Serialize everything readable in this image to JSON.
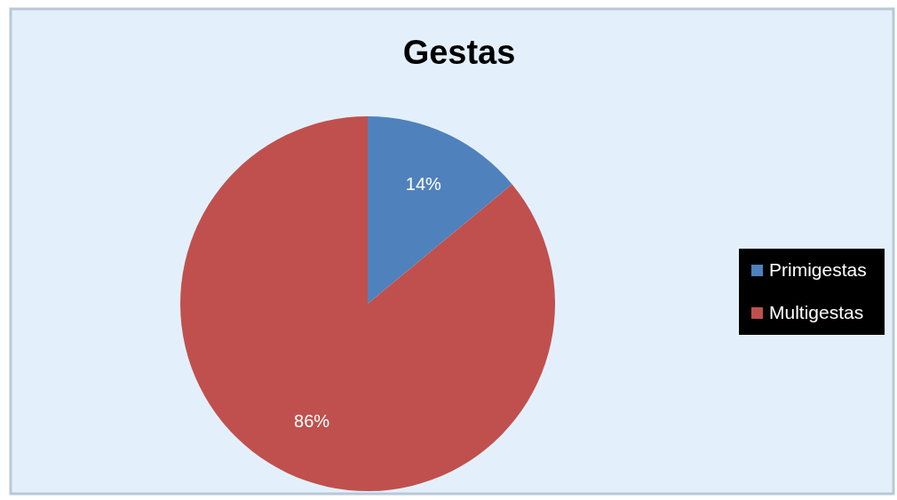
{
  "chart_data": {
    "type": "pie",
    "title": "Gestas",
    "categories": [
      "Primigestas",
      "Multigestas"
    ],
    "values": [
      14,
      86
    ],
    "colors": [
      "#4f81bd",
      "#c0504d"
    ],
    "value_labels": [
      "14%",
      "86%"
    ],
    "legend": "right"
  }
}
